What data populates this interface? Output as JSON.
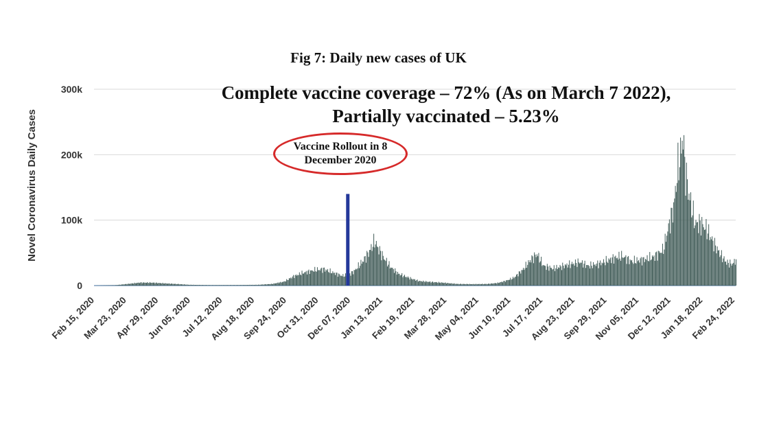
{
  "colors": {
    "bars": "#3f5a56",
    "vaccine_line": "#24389a",
    "ellipse": "#d62a2a",
    "grid": "#d9d9d9",
    "baseline": "#9fb6cf",
    "tick_text": "#333333"
  },
  "chart_data": {
    "type": "bar",
    "title": "Fig 7: Daily new cases of UK",
    "coverage_line1": "Complete vaccine coverage – 72% (As on March 7 2022),",
    "coverage_line2": "Partially vaccinated – 5.23%",
    "ylabel": "Novel Coronavirus Daily Cases",
    "xlabel": "",
    "ylim": [
      0,
      300000
    ],
    "yticks": [
      0,
      100000,
      200000,
      300000
    ],
    "ytick_labels": [
      "0",
      "100k",
      "200k",
      "300k"
    ],
    "x_start": "2020-02-15",
    "x_end": "2022-03-07",
    "xtick_labels": [
      "Feb 15, 2020",
      "Mar 23, 2020",
      "Apr 29, 2020",
      "Jun 05, 2020",
      "Jul 12, 2020",
      "Aug 18, 2020",
      "Sep 24, 2020",
      "Oct 31, 2020",
      "Dec 07, 2020",
      "Jan 13, 2021",
      "Feb 19, 2021",
      "Mar 28, 2021",
      "May 04, 2021",
      "Jun 10, 2021",
      "Jul 17, 2021",
      "Aug 23, 2021",
      "Sep 29, 2021",
      "Nov 05, 2021",
      "Dec 12, 2021",
      "Jan 18, 2022",
      "Feb 24, 2022"
    ],
    "grid": "horizontal",
    "legend": "none",
    "annotation": {
      "text_line1": "Vaccine Rollout in 8",
      "text_line2": "December 2020",
      "date": "2020-12-08",
      "line_value": 140000
    },
    "series": [
      {
        "points": [
          [
            "2020-02-15",
            0
          ],
          [
            "2020-03-10",
            500
          ],
          [
            "2020-03-25",
            2500
          ],
          [
            "2020-04-08",
            4500
          ],
          [
            "2020-04-22",
            4500
          ],
          [
            "2020-05-06",
            3500
          ],
          [
            "2020-05-20",
            2500
          ],
          [
            "2020-06-05",
            1200
          ],
          [
            "2020-07-01",
            700
          ],
          [
            "2020-08-01",
            800
          ],
          [
            "2020-08-25",
            1200
          ],
          [
            "2020-09-10",
            2500
          ],
          [
            "2020-09-24",
            6000
          ],
          [
            "2020-10-05",
            14000
          ],
          [
            "2020-10-15",
            19000
          ],
          [
            "2020-10-31",
            24000
          ],
          [
            "2020-11-10",
            25000
          ],
          [
            "2020-11-20",
            20000
          ],
          [
            "2020-12-01",
            15000
          ],
          [
            "2020-12-08",
            16000
          ],
          [
            "2020-12-15",
            22000
          ],
          [
            "2020-12-25",
            37000
          ],
          [
            "2021-01-01",
            50000
          ],
          [
            "2021-01-05",
            60000
          ],
          [
            "2021-01-08",
            68000
          ],
          [
            "2021-01-13",
            55000
          ],
          [
            "2021-01-20",
            40000
          ],
          [
            "2021-01-27",
            28000
          ],
          [
            "2021-02-05",
            18000
          ],
          [
            "2021-02-19",
            11000
          ],
          [
            "2021-03-01",
            7000
          ],
          [
            "2021-03-15",
            5500
          ],
          [
            "2021-03-28",
            4500
          ],
          [
            "2021-04-15",
            2500
          ],
          [
            "2021-05-04",
            2200
          ],
          [
            "2021-05-20",
            2500
          ],
          [
            "2021-06-01",
            4000
          ],
          [
            "2021-06-10",
            7000
          ],
          [
            "2021-06-20",
            12000
          ],
          [
            "2021-07-01",
            25000
          ],
          [
            "2021-07-10",
            40000
          ],
          [
            "2021-07-17",
            48000
          ],
          [
            "2021-07-25",
            30000
          ],
          [
            "2021-08-05",
            26000
          ],
          [
            "2021-08-23",
            32000
          ],
          [
            "2021-09-05",
            36000
          ],
          [
            "2021-09-15",
            30000
          ],
          [
            "2021-09-29",
            34000
          ],
          [
            "2021-10-15",
            42000
          ],
          [
            "2021-10-25",
            45000
          ],
          [
            "2021-11-05",
            37000
          ],
          [
            "2021-11-20",
            40000
          ],
          [
            "2021-12-01",
            44000
          ],
          [
            "2021-12-12",
            55000
          ],
          [
            "2021-12-18",
            90000
          ],
          [
            "2021-12-24",
            120000
          ],
          [
            "2021-12-29",
            180000
          ],
          [
            "2022-01-01",
            200000
          ],
          [
            "2022-01-04",
            230000
          ],
          [
            "2022-01-06",
            185000
          ],
          [
            "2022-01-10",
            145000
          ],
          [
            "2022-01-18",
            95000
          ],
          [
            "2022-01-25",
            95000
          ],
          [
            "2022-02-01",
            85000
          ],
          [
            "2022-02-10",
            62000
          ],
          [
            "2022-02-17",
            47000
          ],
          [
            "2022-02-24",
            35000
          ],
          [
            "2022-03-03",
            33000
          ],
          [
            "2022-03-07",
            40000
          ]
        ]
      }
    ]
  }
}
